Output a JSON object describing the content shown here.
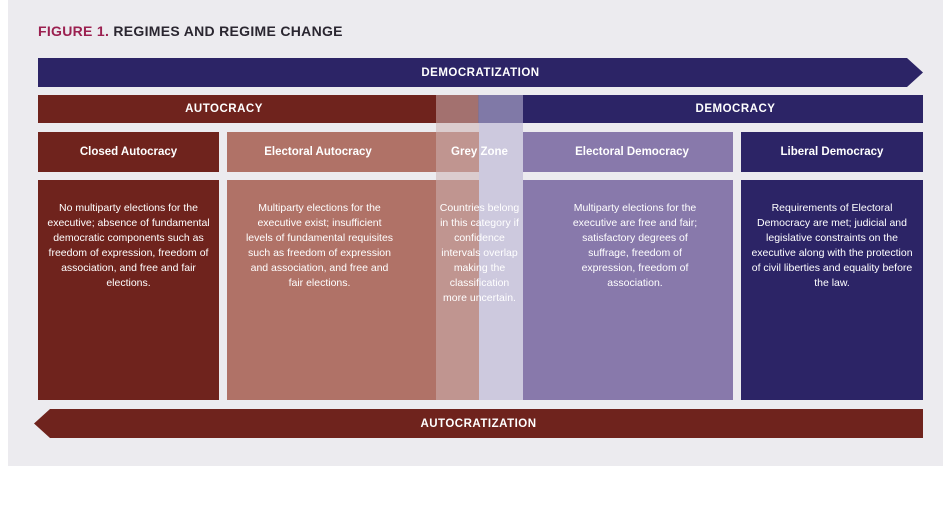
{
  "figure": {
    "label": "FIGURE 1.",
    "title": "REGIMES AND REGIME CHANGE"
  },
  "arrows": {
    "top": "DEMOCRATIZATION",
    "bottom": "AUTOCRATIZATION"
  },
  "bands": {
    "left": "AUTOCRACY",
    "right": "DEMOCRACY"
  },
  "categories": [
    {
      "title": "Closed Autocracy",
      "description": "No multiparty elections for the executive; absence of fundamental democratic components such as  freedom of expression, freedom of association, and free and fair elections."
    },
    {
      "title": "Electoral Autocracy",
      "description": "Multiparty elections for the executive exist; insufficient levels of fundamental requisites such as freedom of expression and association, and free and fair elections."
    },
    {
      "title": "Grey Zone",
      "description": "Countries belong in this category if confidence intervals overlap making the classification more uncertain."
    },
    {
      "title": "Electoral Democracy",
      "description": "Multiparty elections for the executive are free and fair; satisfactory degrees of suffrage, freedom of expression, freedom of association."
    },
    {
      "title": "Liberal Democracy",
      "description": "Requirements of Electoral Democracy are met; judicial and legislative constraints on the executive along with the protection of civil liberties and equality before the law."
    }
  ],
  "colors": {
    "autocracy": "#6f231d",
    "electoral_autocracy": "#b07267",
    "electoral_democracy": "#8879ab",
    "democracy": "#2c2466",
    "title_accent": "#9b2050"
  }
}
